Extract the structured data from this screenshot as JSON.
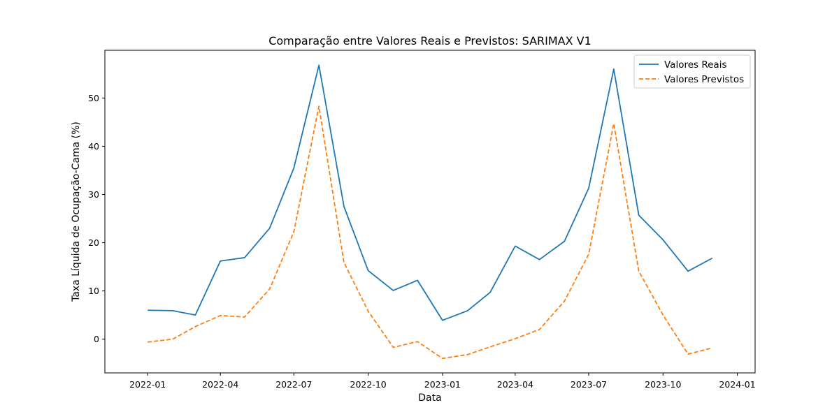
{
  "chart_data": {
    "type": "line",
    "title": "Comparação entre Valores Reais e Previstos: SARIMAX V1",
    "xlabel": "Data",
    "ylabel": "Taxa Líquida de Ocupação-Cama (%)",
    "x": [
      "2022-01",
      "2022-02",
      "2022-03",
      "2022-04",
      "2022-05",
      "2022-06",
      "2022-07",
      "2022-08",
      "2022-09",
      "2022-10",
      "2022-11",
      "2022-12",
      "2023-01",
      "2023-02",
      "2023-03",
      "2023-04",
      "2023-05",
      "2023-06",
      "2023-07",
      "2023-08",
      "2023-09",
      "2023-10",
      "2023-11",
      "2023-12"
    ],
    "series": [
      {
        "name": "Valores Reais",
        "color": "#1f77b4",
        "style": "solid",
        "values": [
          6.0,
          5.9,
          5.0,
          16.2,
          16.9,
          23.0,
          35.5,
          56.8,
          27.5,
          14.2,
          10.1,
          12.2,
          3.9,
          5.9,
          9.7,
          19.3,
          16.5,
          20.3,
          31.3,
          56.0,
          25.7,
          20.6,
          14.1,
          16.8
        ]
      },
      {
        "name": "Valores Previstos",
        "color": "#ff7f0e",
        "style": "dashed",
        "values": [
          -0.6,
          0.0,
          2.6,
          4.9,
          4.6,
          10.4,
          22.3,
          48.3,
          15.9,
          5.8,
          -1.7,
          -0.5,
          -4.0,
          -3.2,
          -1.6,
          0.1,
          2.0,
          7.9,
          17.6,
          44.7,
          14.1,
          5.0,
          -3.1,
          -1.8
        ]
      }
    ],
    "xticks": [
      "2022-01",
      "2022-04",
      "2022-07",
      "2022-10",
      "2023-01",
      "2023-04",
      "2023-07",
      "2023-10",
      "2024-01"
    ],
    "yticks": [
      0,
      10,
      20,
      30,
      40,
      50
    ],
    "xlim": [
      "2021-11-09",
      "2024-01-23"
    ],
    "ylim": [
      -7.0,
      59.9
    ],
    "grid": false,
    "legend": "top-right"
  }
}
